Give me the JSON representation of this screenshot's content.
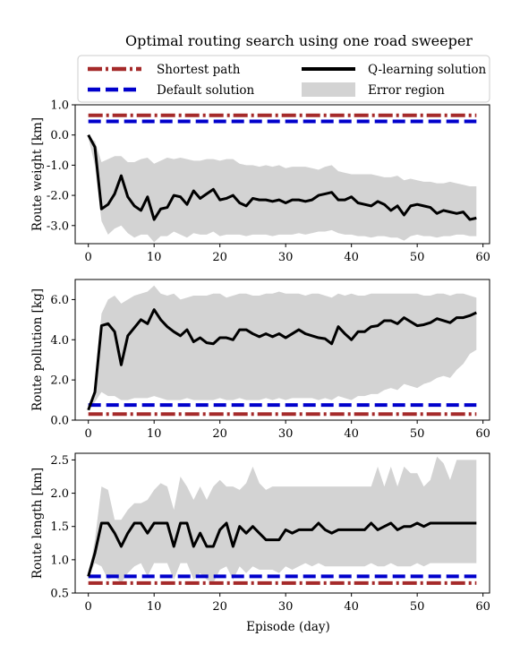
{
  "title": "Optimal routing search using one road sweeper",
  "legend": [
    {
      "label": "Shortest path",
      "color": "#a52a2a",
      "style": "dashdot"
    },
    {
      "label": "Q-learning solution",
      "color": "#000000",
      "style": "solid"
    },
    {
      "label": "Default solution",
      "color": "#0000cc",
      "style": "dashed"
    },
    {
      "label": "Error region",
      "color": "#d3d3d3",
      "style": "fill"
    }
  ],
  "xlabel": "Episode (day)",
  "chart_data": [
    {
      "type": "line",
      "ylabel": "Route weight [km]",
      "xlim": [
        -2,
        61
      ],
      "ylim": [
        -3.6,
        1.0
      ],
      "xticks": [
        "0",
        "10",
        "20",
        "30",
        "40",
        "50",
        "60"
      ],
      "yticks": [
        "1.0",
        "0.0",
        "-1.0",
        "-2.0",
        "-3.0"
      ],
      "shortest_path": 0.65,
      "default_solution": 0.45,
      "x": [
        0,
        1,
        2,
        3,
        4,
        5,
        6,
        7,
        8,
        9,
        10,
        11,
        12,
        13,
        14,
        15,
        16,
        17,
        18,
        19,
        20,
        21,
        22,
        23,
        24,
        25,
        26,
        27,
        28,
        29,
        30,
        31,
        32,
        33,
        34,
        35,
        36,
        37,
        38,
        39,
        40,
        41,
        42,
        43,
        44,
        45,
        46,
        47,
        48,
        49,
        50,
        51,
        52,
        53,
        54,
        55,
        56,
        57,
        58,
        59
      ],
      "q_learning": [
        0.0,
        -0.4,
        -2.45,
        -2.3,
        -1.95,
        -1.35,
        -2.05,
        -2.35,
        -2.5,
        -2.05,
        -2.8,
        -2.45,
        -2.4,
        -2.0,
        -2.05,
        -2.3,
        -1.85,
        -2.1,
        -1.95,
        -1.8,
        -2.15,
        -2.1,
        -2.0,
        -2.25,
        -2.35,
        -2.1,
        -2.15,
        -2.15,
        -2.2,
        -2.15,
        -2.25,
        -2.15,
        -2.15,
        -2.2,
        -2.15,
        -2.0,
        -1.95,
        -1.9,
        -2.15,
        -2.15,
        -2.05,
        -2.25,
        -2.3,
        -2.35,
        -2.2,
        -2.3,
        -2.5,
        -2.35,
        -2.65,
        -2.35,
        -2.3,
        -2.35,
        -2.4,
        -2.6,
        -2.5,
        -2.55,
        -2.6,
        -2.55,
        -2.8,
        -2.75
      ],
      "error_upper": [
        -0.1,
        -0.2,
        -0.9,
        -0.8,
        -0.7,
        -0.7,
        -0.9,
        -0.9,
        -0.8,
        -0.75,
        -0.95,
        -0.85,
        -0.75,
        -0.8,
        -0.75,
        -0.8,
        -0.85,
        -0.85,
        -0.8,
        -0.8,
        -0.85,
        -0.8,
        -0.8,
        -0.95,
        -1.0,
        -1.0,
        -1.05,
        -1.0,
        -1.05,
        -1.0,
        -1.1,
        -1.05,
        -1.05,
        -1.05,
        -1.1,
        -1.15,
        -1.05,
        -1.0,
        -1.2,
        -1.25,
        -1.3,
        -1.3,
        -1.3,
        -1.3,
        -1.35,
        -1.4,
        -1.4,
        -1.35,
        -1.5,
        -1.45,
        -1.5,
        -1.55,
        -1.55,
        -1.6,
        -1.6,
        -1.55,
        -1.6,
        -1.65,
        -1.7,
        -1.7
      ],
      "error_lower": [
        -0.1,
        -1.0,
        -2.85,
        -3.3,
        -3.1,
        -3.0,
        -3.25,
        -3.4,
        -3.3,
        -3.3,
        -3.55,
        -3.35,
        -3.35,
        -3.2,
        -3.3,
        -3.4,
        -3.25,
        -3.3,
        -3.3,
        -3.2,
        -3.35,
        -3.3,
        -3.3,
        -3.3,
        -3.35,
        -3.3,
        -3.3,
        -3.3,
        -3.35,
        -3.3,
        -3.3,
        -3.3,
        -3.25,
        -3.3,
        -3.25,
        -3.2,
        -3.2,
        -3.15,
        -3.25,
        -3.3,
        -3.3,
        -3.35,
        -3.35,
        -3.4,
        -3.35,
        -3.35,
        -3.4,
        -3.4,
        -3.5,
        -3.35,
        -3.3,
        -3.35,
        -3.35,
        -3.4,
        -3.35,
        -3.35,
        -3.3,
        -3.3,
        -3.35,
        -3.35
      ]
    },
    {
      "type": "line",
      "ylabel": "Route pollution [kg]",
      "xlim": [
        -2,
        61
      ],
      "ylim": [
        0.0,
        7.0
      ],
      "xticks": [
        "0",
        "10",
        "20",
        "30",
        "40",
        "50",
        "60"
      ],
      "yticks": [
        "0.0",
        "2.0",
        "4.0",
        "6.0"
      ],
      "shortest_path": 0.3,
      "default_solution": 0.75,
      "x": [
        0,
        1,
        2,
        3,
        4,
        5,
        6,
        7,
        8,
        9,
        10,
        11,
        12,
        13,
        14,
        15,
        16,
        17,
        18,
        19,
        20,
        21,
        22,
        23,
        24,
        25,
        26,
        27,
        28,
        29,
        30,
        31,
        32,
        33,
        34,
        35,
        36,
        37,
        38,
        39,
        40,
        41,
        42,
        43,
        44,
        45,
        46,
        47,
        48,
        49,
        50,
        51,
        52,
        53,
        54,
        55,
        56,
        57,
        58,
        59
      ],
      "q_learning": [
        0.5,
        1.4,
        4.7,
        4.8,
        4.4,
        2.75,
        4.2,
        4.6,
        5.0,
        4.8,
        5.5,
        5.0,
        4.65,
        4.4,
        4.2,
        4.5,
        3.9,
        4.1,
        3.85,
        3.8,
        4.1,
        4.1,
        4.0,
        4.5,
        4.5,
        4.3,
        4.15,
        4.3,
        4.15,
        4.3,
        4.1,
        4.3,
        4.5,
        4.3,
        4.2,
        4.1,
        4.05,
        3.8,
        4.65,
        4.3,
        4.0,
        4.4,
        4.4,
        4.65,
        4.7,
        4.95,
        4.95,
        4.8,
        5.1,
        4.9,
        4.7,
        4.75,
        4.85,
        5.05,
        4.95,
        4.85,
        5.1,
        5.1,
        5.2,
        5.35
      ],
      "error_upper": [
        0.6,
        1.6,
        5.3,
        6.0,
        6.2,
        5.8,
        6.0,
        6.2,
        6.3,
        6.4,
        6.7,
        6.3,
        6.2,
        6.3,
        6.0,
        6.1,
        6.2,
        6.2,
        6.2,
        6.3,
        6.3,
        6.1,
        6.2,
        6.3,
        6.3,
        6.2,
        6.2,
        6.3,
        6.3,
        6.4,
        6.3,
        6.3,
        6.3,
        6.2,
        6.3,
        6.3,
        6.2,
        6.1,
        6.3,
        6.2,
        6.3,
        6.2,
        6.2,
        6.3,
        6.3,
        6.3,
        6.3,
        6.3,
        6.3,
        6.3,
        6.3,
        6.2,
        6.2,
        6.3,
        6.3,
        6.2,
        6.3,
        6.3,
        6.2,
        6.1
      ],
      "error_lower": [
        0.5,
        0.9,
        1.4,
        1.2,
        1.2,
        1.0,
        1.0,
        1.1,
        1.1,
        1.1,
        1.2,
        1.1,
        1.0,
        1.0,
        1.0,
        1.1,
        1.0,
        1.0,
        1.0,
        1.0,
        1.1,
        1.0,
        1.0,
        1.1,
        1.0,
        1.0,
        1.0,
        1.1,
        1.0,
        1.1,
        1.0,
        1.1,
        1.1,
        1.1,
        1.1,
        1.0,
        1.1,
        1.0,
        1.2,
        1.1,
        1.0,
        1.2,
        1.2,
        1.3,
        1.3,
        1.5,
        1.6,
        1.5,
        1.8,
        1.7,
        1.6,
        1.8,
        1.9,
        2.1,
        2.2,
        2.1,
        2.5,
        2.8,
        3.3,
        3.5
      ]
    },
    {
      "type": "line",
      "ylabel": "Route length [km]",
      "xlim": [
        -2,
        61
      ],
      "ylim": [
        0.5,
        2.6
      ],
      "xticks": [
        "0",
        "10",
        "20",
        "30",
        "40",
        "50",
        "60"
      ],
      "yticks": [
        "0.5",
        "1.0",
        "1.5",
        "2.0",
        "2.5"
      ],
      "shortest_path": 0.65,
      "default_solution": 0.75,
      "x": [
        0,
        1,
        2,
        3,
        4,
        5,
        6,
        7,
        8,
        9,
        10,
        11,
        12,
        13,
        14,
        15,
        16,
        17,
        18,
        19,
        20,
        21,
        22,
        23,
        24,
        25,
        26,
        27,
        28,
        29,
        30,
        31,
        32,
        33,
        34,
        35,
        36,
        37,
        38,
        39,
        40,
        41,
        42,
        43,
        44,
        45,
        46,
        47,
        48,
        49,
        50,
        51,
        52,
        53,
        54,
        55,
        56,
        57,
        58,
        59
      ],
      "q_learning": [
        0.75,
        1.1,
        1.55,
        1.55,
        1.4,
        1.2,
        1.4,
        1.55,
        1.55,
        1.4,
        1.55,
        1.55,
        1.55,
        1.2,
        1.55,
        1.55,
        1.2,
        1.4,
        1.2,
        1.2,
        1.45,
        1.55,
        1.2,
        1.5,
        1.4,
        1.5,
        1.4,
        1.3,
        1.3,
        1.3,
        1.45,
        1.4,
        1.45,
        1.45,
        1.45,
        1.55,
        1.45,
        1.4,
        1.45,
        1.45,
        1.45,
        1.45,
        1.45,
        1.55,
        1.45,
        1.5,
        1.55,
        1.45,
        1.5,
        1.5,
        1.55,
        1.5,
        1.55,
        1.55,
        1.55,
        1.55,
        1.55,
        1.55,
        1.55,
        1.55
      ],
      "error_upper": [
        0.75,
        1.3,
        2.1,
        2.05,
        1.6,
        1.6,
        1.75,
        1.85,
        1.85,
        1.9,
        2.05,
        2.15,
        2.1,
        1.75,
        2.25,
        2.1,
        1.9,
        2.1,
        1.9,
        2.1,
        2.2,
        2.1,
        2.1,
        2.05,
        2.15,
        2.4,
        2.15,
        2.05,
        2.1,
        2.1,
        2.1,
        2.1,
        2.1,
        2.1,
        2.1,
        2.1,
        2.1,
        2.1,
        2.1,
        2.1,
        2.1,
        2.1,
        2.1,
        2.1,
        2.4,
        2.1,
        2.4,
        2.1,
        2.4,
        2.3,
        2.3,
        2.1,
        2.2,
        2.55,
        2.45,
        2.2,
        2.5,
        2.5,
        2.5,
        2.5
      ],
      "error_lower": [
        0.75,
        0.95,
        0.9,
        0.7,
        0.75,
        0.65,
        0.8,
        0.9,
        0.95,
        0.75,
        0.95,
        0.95,
        0.95,
        0.7,
        0.95,
        0.95,
        0.7,
        0.8,
        0.7,
        0.65,
        0.85,
        0.9,
        0.7,
        0.9,
        0.8,
        0.9,
        0.85,
        0.85,
        0.85,
        0.8,
        0.9,
        0.85,
        0.9,
        0.95,
        0.9,
        0.95,
        0.9,
        0.9,
        0.9,
        0.9,
        0.9,
        0.9,
        0.9,
        0.95,
        0.9,
        0.9,
        0.95,
        0.9,
        0.9,
        0.9,
        0.95,
        0.9,
        0.95,
        0.95,
        0.95,
        0.95,
        0.95,
        0.95,
        0.95,
        0.95
      ]
    }
  ]
}
